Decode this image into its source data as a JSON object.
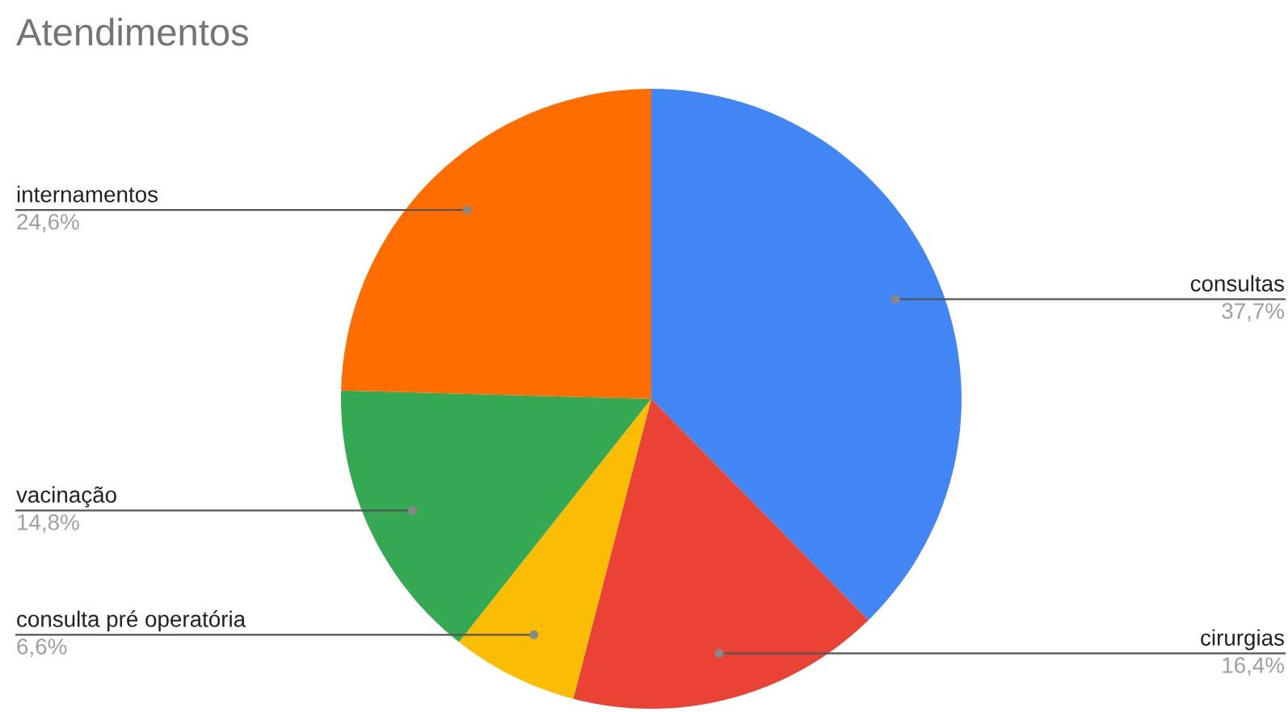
{
  "chart_data": {
    "type": "pie",
    "title": "Atendimentos",
    "categories": [
      "consultas",
      "cirurgias",
      "consulta pré operatória",
      "vacinação",
      "internamentos"
    ],
    "values": [
      37.7,
      16.4,
      6.6,
      14.8,
      24.6
    ],
    "value_labels": [
      "37,7%",
      "16,4%",
      "6,6%",
      "14,8%",
      "24,6%"
    ],
    "colors": [
      "#4285f4",
      "#ea4335",
      "#fbbc04",
      "#34a853",
      "#ff6d01"
    ],
    "legend": false
  }
}
